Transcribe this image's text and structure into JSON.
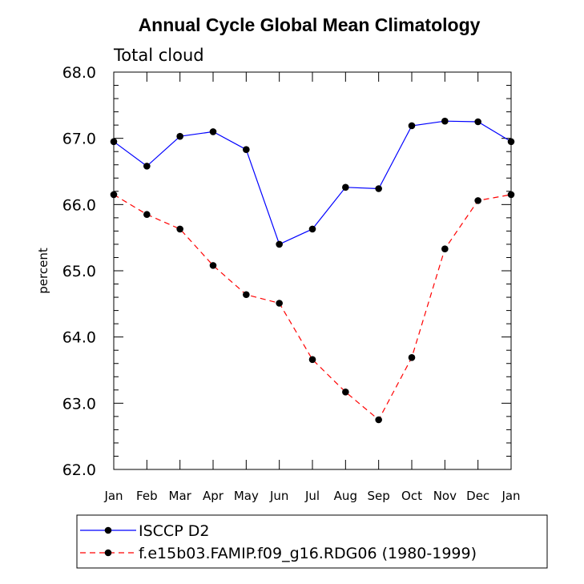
{
  "chart_data": {
    "type": "line",
    "title": "Annual Cycle Global Mean Climatology",
    "subtitle": "Total cloud",
    "ylabel": "percent",
    "xlabel": "",
    "ylim": [
      62.0,
      68.0
    ],
    "yticks": [
      "62.0",
      "63.0",
      "64.0",
      "65.0",
      "66.0",
      "67.0",
      "68.0"
    ],
    "categories": [
      "Jan",
      "Feb",
      "Mar",
      "Apr",
      "May",
      "Jun",
      "Jul",
      "Aug",
      "Sep",
      "Oct",
      "Nov",
      "Dec",
      "Jan"
    ],
    "legend_position": "bottom",
    "series": [
      {
        "name": "ISCCP D2",
        "color": "#0000ff",
        "dash": "solid",
        "values": [
          66.95,
          66.58,
          67.03,
          67.1,
          66.83,
          65.4,
          65.63,
          66.26,
          66.24,
          67.19,
          67.26,
          67.25,
          66.95
        ]
      },
      {
        "name": "f.e15b03.FAMIP.f09_g16.RDG06 (1980-1999)",
        "color": "#ff0000",
        "dash": "dashed",
        "values": [
          66.15,
          65.85,
          65.63,
          65.08,
          64.64,
          64.51,
          63.66,
          63.17,
          62.75,
          63.69,
          65.33,
          66.06,
          66.15
        ]
      }
    ]
  }
}
